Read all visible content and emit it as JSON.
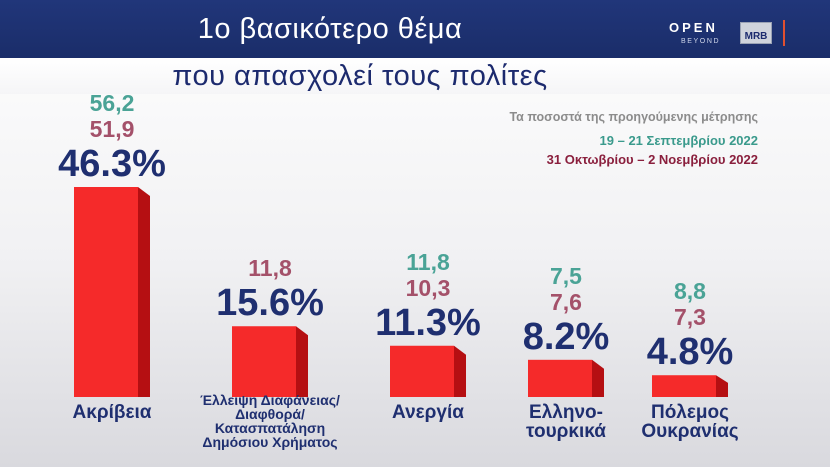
{
  "header": {
    "title": "1ο βασικότερο θέμα",
    "subtitle": "που απασχολεί τους πολίτες",
    "logo_open": "OPEN",
    "logo_beyond": "BEYOND",
    "logo_mrb": "MRB"
  },
  "legend": {
    "note": "Τα ποσοστά της προηγούμενης μέτρησης",
    "period_prev2": "19 –  21 Σεπτεμβρίου 2022",
    "period_prev1": "31 Οκτωβρίου –  2 Νοεμβρίου 2022"
  },
  "colors": {
    "prev2": "#4aa396",
    "prev1": "#a4516a",
    "current": "#1f2f70",
    "bar_front": "#f52a2a",
    "bar_side": "#b50f12"
  },
  "chart_data": {
    "type": "bar",
    "categories": [
      "Ακρίβεια",
      "Έλλειψη Διαφάνειας/ Διαφθορά/ Κατασπατάληση Δημόσιου Χρήματος",
      "Ανεργία",
      "Ελληνο-τουρκικά",
      "Πόλεμος Ουκρανίας"
    ],
    "category_lines": [
      [
        "Ακρίβεια"
      ],
      [
        "Έλλειψη Διαφάνειας/",
        "Διαφθορά/",
        "Κατασπατάληση",
        "Δημόσιου Χρήματος"
      ],
      [
        "Ανεργία"
      ],
      [
        "Ελληνο-",
        "τουρκικά"
      ],
      [
        "Πόλεμος",
        "Ουκρανίας"
      ]
    ],
    "values": [
      46.3,
      15.6,
      11.3,
      8.2,
      4.8
    ],
    "value_labels": [
      "46.3%",
      "15.6%",
      "11.3%",
      "8.2%",
      "4.8%"
    ],
    "previous_prev1": [
      "51,9",
      "11,8",
      "10,3",
      "7,6",
      "7,3"
    ],
    "previous_prev2": [
      "56,2",
      "",
      "11,8",
      "7,5",
      "8,8"
    ],
    "ylim": [
      0,
      50
    ],
    "grid": false
  }
}
